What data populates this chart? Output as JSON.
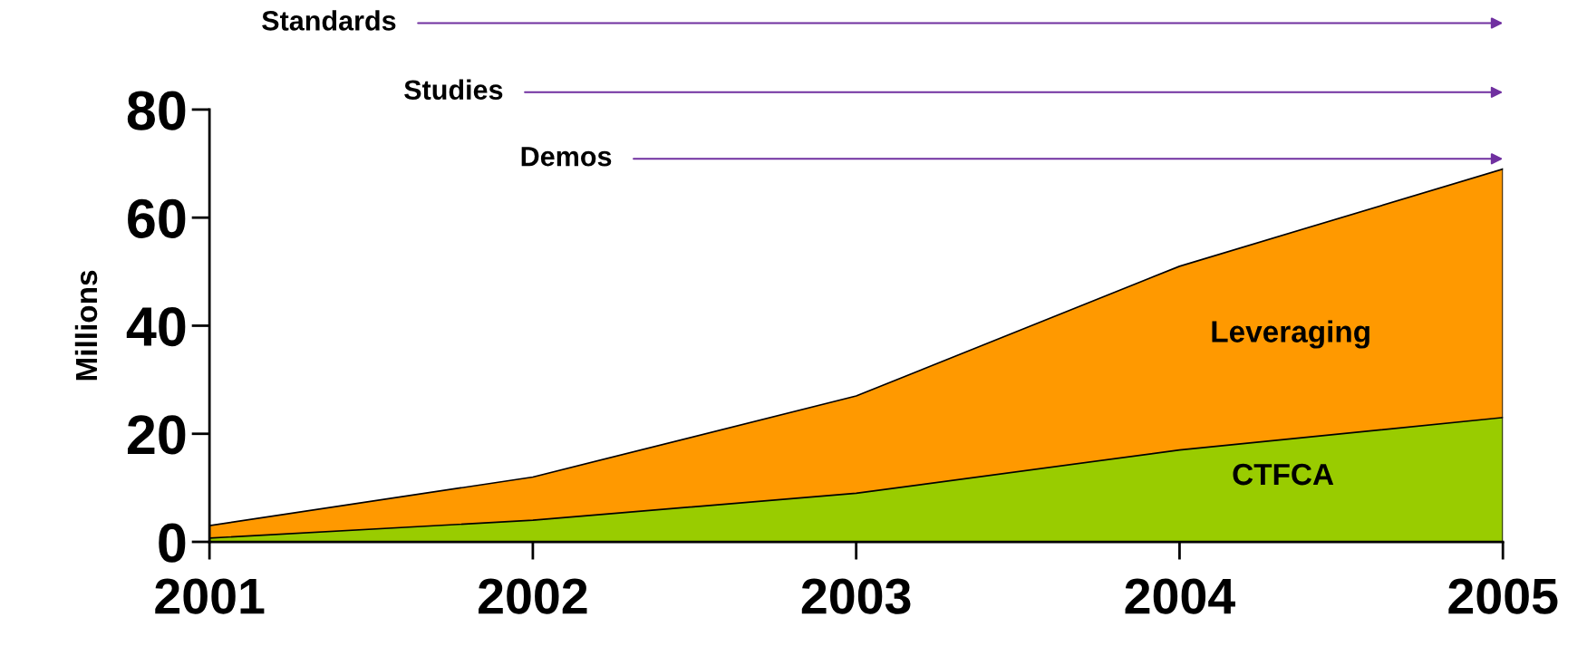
{
  "chart_data": {
    "type": "area",
    "stacked": true,
    "ylabel": "Millions",
    "x": [
      2001,
      2002,
      2003,
      2004,
      2005
    ],
    "series": [
      {
        "name": "CTFCA",
        "color": "#99cc00",
        "values": [
          0.7,
          4,
          9,
          17,
          23
        ]
      },
      {
        "name": "Leveraging",
        "color": "#ff9900",
        "values": [
          2.3,
          8,
          18,
          34,
          46
        ]
      }
    ],
    "xlim": [
      2001,
      2005
    ],
    "xticks": [
      2001,
      2002,
      2003,
      2004,
      2005
    ],
    "ylim": [
      0,
      80
    ],
    "yticks": [
      0,
      20,
      40,
      60,
      80
    ],
    "grid": false,
    "legend": false,
    "annotations": [
      "Standards",
      "Studies",
      "Demos"
    ]
  }
}
